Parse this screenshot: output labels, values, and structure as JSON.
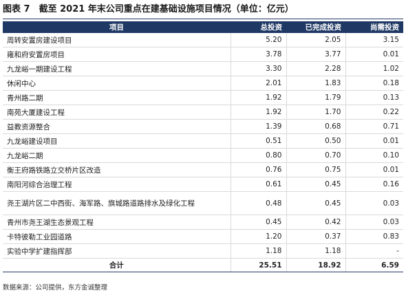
{
  "title": "图表 7　截至 2021 年末公司重点在建基础设施项目情况（单位：亿元）",
  "table": {
    "headers": [
      "项目",
      "总投资",
      "已完成投资",
      "尚需投资"
    ],
    "rows": [
      {
        "name": "周转安置房建设项目",
        "total": "5.20",
        "done": "2.05",
        "remaining": "3.15"
      },
      {
        "name": "雍和府安置房项目",
        "total": "3.78",
        "done": "3.77",
        "remaining": "0.01"
      },
      {
        "name": "九龙峪一期建设工程",
        "total": "3.30",
        "done": "2.28",
        "remaining": "1.02"
      },
      {
        "name": "休闲中心",
        "total": "2.01",
        "done": "1.83",
        "remaining": "0.18"
      },
      {
        "name": "青州路二期",
        "total": "1.92",
        "done": "1.79",
        "remaining": "0.13"
      },
      {
        "name": "南苑大厦建设工程",
        "total": "1.92",
        "done": "1.70",
        "remaining": "0.22"
      },
      {
        "name": "益教资源整合",
        "total": "1.39",
        "done": "0.68",
        "remaining": "0.71"
      },
      {
        "name": "九龙峪建设项目",
        "total": "0.51",
        "done": "0.50",
        "remaining": "0.01"
      },
      {
        "name": "九龙峪二期",
        "total": "0.80",
        "done": "0.70",
        "remaining": "0.10"
      },
      {
        "name": "衡王府路铁路立交桥片区改造",
        "total": "0.76",
        "done": "0.75",
        "remaining": "0.01"
      },
      {
        "name": "南阳河综合治理工程",
        "total": "0.61",
        "done": "0.45",
        "remaining": "0.16"
      },
      {
        "name": "尧王湖片区二中西街、海军路、旗城路道路排水及绿化工程",
        "total": "0.48",
        "done": "0.45",
        "remaining": "0.03"
      },
      {
        "name": "青州市尧王湖生态景观工程",
        "total": "0.45",
        "done": "0.42",
        "remaining": "0.03"
      },
      {
        "name": "卡特彼勒工业园道路",
        "total": "1.20",
        "done": "0.37",
        "remaining": "0.83"
      },
      {
        "name": "实验中学扩建指挥部",
        "total": "1.18",
        "done": "1.18",
        "remaining": "-"
      }
    ],
    "total_row": {
      "name": "合计",
      "total": "25.51",
      "done": "18.92",
      "remaining": "6.59"
    }
  },
  "source": "数据来源：公司提供，东方金诚整理",
  "colors": {
    "header_bg": "#1f3864",
    "header_text": "#ffffff",
    "row_border": "#d9d9d9"
  }
}
